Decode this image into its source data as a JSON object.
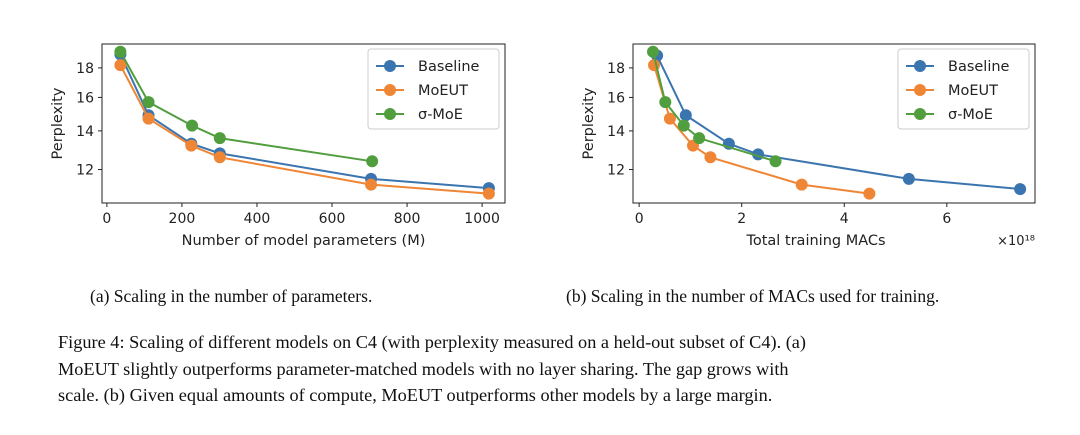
{
  "colors": {
    "Baseline": "#3b75af",
    "MoEUT": "#ef8636",
    "σ-MoE": "#519e3e"
  },
  "chart_data": [
    {
      "type": "line",
      "title": "",
      "xlabel": "Number of model parameters (M)",
      "ylabel": "Perplexity",
      "xlim": [
        -13,
        1061
      ],
      "ylim": [
        10.5,
        19.8
      ],
      "yscale": "log",
      "xticks": [
        0,
        200,
        400,
        600,
        800,
        1000
      ],
      "yticks": [
        12,
        14,
        16,
        18
      ],
      "legend_position": "top-right",
      "grid": false,
      "series": [
        {
          "name": "Baseline",
          "x": [
            36,
            111,
            225,
            301,
            704,
            1018
          ],
          "y": [
            19.0,
            14.9,
            13.3,
            12.8,
            11.56,
            11.14
          ]
        },
        {
          "name": "MoEUT",
          "x": [
            36,
            111,
            225,
            301,
            704,
            1018
          ],
          "y": [
            18.2,
            14.7,
            13.2,
            12.6,
            11.3,
            10.9
          ]
        },
        {
          "name": "σ-MoE",
          "x": [
            36,
            111,
            227,
            301,
            707
          ],
          "y": [
            19.2,
            15.7,
            14.3,
            13.6,
            12.4
          ]
        }
      ]
    },
    {
      "type": "line",
      "title": "",
      "xlabel": "Total training MACs",
      "x_multiplier": "×10¹⁸",
      "ylabel": "Perplexity",
      "xlim": [
        -0.12,
        7.72
      ],
      "ylim": [
        10.5,
        19.8
      ],
      "yscale": "log",
      "xticks": [
        0,
        2,
        4,
        6
      ],
      "yticks": [
        12,
        14,
        16,
        18
      ],
      "legend_position": "top-right",
      "grid": false,
      "series": [
        {
          "name": "Baseline",
          "x": [
            0.35,
            0.91,
            1.75,
            2.32,
            5.26,
            7.43
          ],
          "y": [
            18.9,
            14.9,
            13.3,
            12.75,
            11.56,
            11.1
          ]
        },
        {
          "name": "MoEUT",
          "x": [
            0.29,
            0.6,
            1.05,
            1.39,
            3.17,
            4.49
          ],
          "y": [
            18.2,
            14.7,
            13.2,
            12.6,
            11.3,
            10.9
          ]
        },
        {
          "name": "σ-MoE",
          "x": [
            0.27,
            0.51,
            0.87,
            1.17,
            2.66
          ],
          "y": [
            19.2,
            15.7,
            14.3,
            13.6,
            12.4
          ]
        }
      ]
    }
  ],
  "subcaptions": [
    "(a) Scaling in the number of parameters.",
    "(b) Scaling in the number of MACs used for training."
  ],
  "caption_lines": [
    "Figure 4: Scaling of different models on C4 (with perplexity measured on a held-out subset of C4). (a)",
    "MoEUT slightly outperforms parameter-matched models with no layer sharing. The gap grows with",
    "scale. (b) Given equal amounts of compute, MoEUT outperforms other models by a large margin."
  ]
}
